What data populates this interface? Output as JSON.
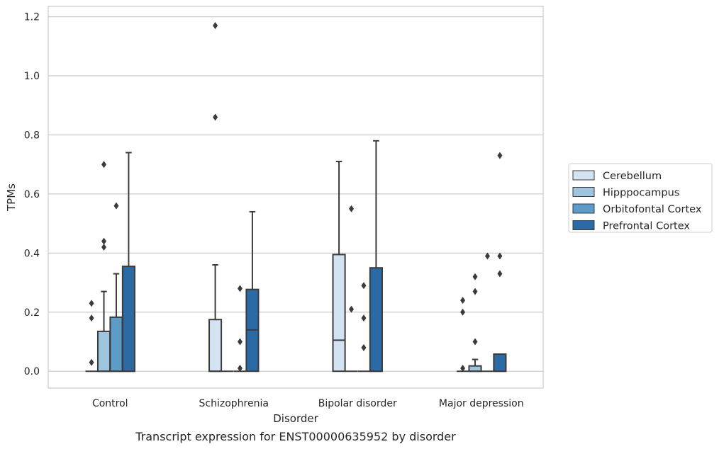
{
  "chart_data": {
    "type": "box",
    "title": "",
    "caption": "Transcript expression for ENST00000635952 by disorder",
    "xlabel": "Disorder",
    "ylabel": "TPMs",
    "ylim": [
      -0.057,
      1.235
    ],
    "yticks": [
      0.0,
      0.2,
      0.4,
      0.6,
      0.8,
      1.0,
      1.2
    ],
    "ytick_labels": [
      "0.0",
      "0.2",
      "0.4",
      "0.6",
      "0.8",
      "1.0",
      "1.2"
    ],
    "grid": true,
    "legend_position": "right",
    "categories": [
      "Control",
      "Schizophrenia",
      "Bipolar disorder",
      "Major depression"
    ],
    "series": [
      {
        "name": "Cerebellum",
        "color": "#d4e3f1",
        "boxes": [
          {
            "q1": 0,
            "median": 0,
            "q3": 0,
            "whisker_low": 0,
            "whisker_high": 0,
            "outliers": [
              0.03,
              0.18,
              0.23
            ]
          },
          {
            "q1": 0,
            "median": 0,
            "q3": 0.175,
            "whisker_low": 0,
            "whisker_high": 0.36,
            "outliers": [
              0.86,
              1.17
            ]
          },
          {
            "q1": 0,
            "median": 0.105,
            "q3": 0.395,
            "whisker_low": 0,
            "whisker_high": 0.71,
            "outliers": []
          },
          {
            "q1": 0,
            "median": 0,
            "q3": 0,
            "whisker_low": 0,
            "whisker_high": 0,
            "outliers": [
              0.01,
              0.2,
              0.24
            ]
          }
        ]
      },
      {
        "name": "Hipppocampus",
        "color": "#9ec4de",
        "boxes": [
          {
            "q1": 0,
            "median": 0,
            "q3": 0.135,
            "whisker_low": 0,
            "whisker_high": 0.27,
            "outliers": [
              0.42,
              0.44,
              0.7
            ]
          },
          {
            "q1": 0,
            "median": 0,
            "q3": 0,
            "whisker_low": 0,
            "whisker_high": 0,
            "outliers": []
          },
          {
            "q1": 0,
            "median": 0,
            "q3": 0,
            "whisker_low": 0,
            "whisker_high": 0,
            "outliers": [
              0.21,
              0.55
            ]
          },
          {
            "q1": 0,
            "median": 0,
            "q3": 0.018,
            "whisker_low": 0,
            "whisker_high": 0.04,
            "outliers": [
              0.1,
              0.27,
              0.32
            ]
          }
        ]
      },
      {
        "name": "Orbitofontal Cortex",
        "color": "#5d9bc8",
        "boxes": [
          {
            "q1": 0,
            "median": 0,
            "q3": 0.183,
            "whisker_low": 0,
            "whisker_high": 0.33,
            "outliers": [
              0.56
            ]
          },
          {
            "q1": 0,
            "median": 0,
            "q3": 0,
            "whisker_low": 0,
            "whisker_high": 0,
            "outliers": [
              0.01,
              0.1,
              0.28
            ]
          },
          {
            "q1": 0,
            "median": 0,
            "q3": 0,
            "whisker_low": 0,
            "whisker_high": 0,
            "outliers": [
              0.08,
              0.18,
              0.29
            ]
          },
          {
            "q1": 0,
            "median": 0,
            "q3": 0,
            "whisker_low": 0,
            "whisker_high": 0,
            "outliers": [
              0.39
            ]
          }
        ]
      },
      {
        "name": "Prefrontal Cortex",
        "color": "#2c6aa5",
        "boxes": [
          {
            "q1": 0,
            "median": 0,
            "q3": 0.355,
            "whisker_low": 0,
            "whisker_high": 0.74,
            "outliers": []
          },
          {
            "q1": 0,
            "median": 0.14,
            "q3": 0.277,
            "whisker_low": 0,
            "whisker_high": 0.54,
            "outliers": []
          },
          {
            "q1": 0,
            "median": 0,
            "q3": 0.35,
            "whisker_low": 0,
            "whisker_high": 0.78,
            "outliers": []
          },
          {
            "q1": 0,
            "median": 0,
            "q3": 0.058,
            "whisker_low": 0,
            "whisker_high": 0.058,
            "outliers": [
              0.33,
              0.39,
              0.73
            ]
          }
        ]
      }
    ]
  }
}
